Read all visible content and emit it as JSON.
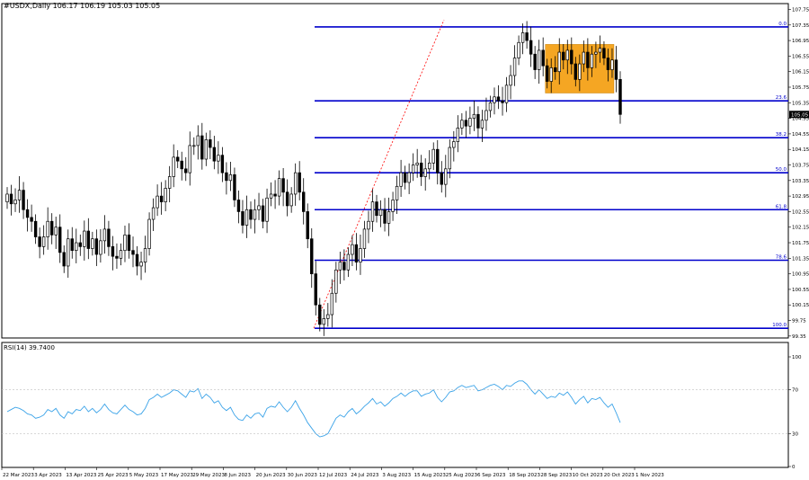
{
  "header": {
    "symbol_line": "#USDX,Daily  106.17 106.19 105.03 105.05"
  },
  "rsi_panel": {
    "label": "RSI(14) 39.7400",
    "levels": [
      30,
      70
    ],
    "scale_labels": [
      "100",
      "70",
      "30",
      "0"
    ]
  },
  "colors": {
    "bull_candle": "#ffffff",
    "bear_candle": "#000000",
    "candle_outline": "#000000",
    "fib_line": "#0000cc",
    "trend_line": "#ff0000",
    "rsi_line": "#3ba3e8",
    "box_fill": "#f5a623",
    "current_price_bg": "#000000"
  },
  "chart_data": [
    {
      "type": "candlestick",
      "title": "#USDX,Daily",
      "y_axis_ticks": [
        "107.75",
        "107.35",
        "106.95",
        "106.55",
        "106.15",
        "105.75",
        "105.35",
        "104.95",
        "104.55",
        "104.15",
        "103.75",
        "103.35",
        "102.95",
        "102.55",
        "102.15",
        "101.75",
        "101.35",
        "100.95",
        "100.55",
        "100.15",
        "99.75",
        "99.35"
      ],
      "ylim": [
        99.3,
        107.9
      ],
      "current_price_label": "105.05",
      "x_axis_labels": [
        "22 Mar 2023",
        "3 Apr 2023",
        "13 Apr 2023",
        "25 Apr 2023",
        "5 May 2023",
        "17 May 2023",
        "29 May 2023",
        "8 Jun 2023",
        "20 Jun 2023",
        "30 Jun 2023",
        "12 Jul 2023",
        "24 Jul 2023",
        "3 Aug 2023",
        "15 Aug 2023",
        "25 Aug 2023",
        "6 Sep 2023",
        "18 Sep 2023",
        "28 Sep 2023",
        "10 Oct 2023",
        "20 Oct 2023",
        "1 Nov 2023"
      ],
      "closes": [
        103.0,
        102.75,
        102.85,
        103.1,
        102.6,
        102.4,
        102.3,
        101.9,
        101.65,
        101.9,
        102.3,
        101.95,
        102.15,
        101.5,
        101.15,
        101.85,
        101.55,
        101.75,
        101.65,
        102.05,
        101.6,
        101.85,
        101.45,
        101.8,
        102.1,
        101.65,
        101.4,
        101.35,
        101.55,
        101.95,
        101.55,
        101.45,
        101.15,
        101.25,
        101.6,
        102.35,
        102.65,
        102.95,
        102.8,
        103.15,
        103.45,
        103.95,
        103.85,
        103.65,
        103.55,
        104.25,
        104.25,
        104.5,
        103.9,
        104.4,
        104.2,
        103.85,
        104.0,
        103.55,
        103.35,
        103.5,
        102.85,
        102.55,
        102.2,
        102.6,
        102.35,
        102.6,
        102.7,
        102.3,
        102.9,
        103.0,
        102.95,
        103.4,
        103.05,
        102.7,
        103.0,
        103.55,
        103.05,
        102.55,
        101.85,
        100.95,
        100.15,
        99.65,
        99.8,
        99.9,
        100.45,
        101.05,
        101.25,
        101.05,
        101.45,
        101.7,
        101.25,
        101.6,
        102.1,
        102.3,
        102.8,
        102.45,
        102.6,
        102.25,
        102.55,
        102.85,
        103.2,
        103.55,
        103.3,
        103.55,
        103.75,
        103.8,
        103.45,
        103.65,
        103.8,
        104.15,
        103.55,
        103.25,
        103.65,
        104.2,
        104.35,
        104.7,
        104.9,
        104.75,
        104.95,
        105.05,
        104.7,
        104.9,
        105.15,
        105.35,
        105.5,
        105.4,
        105.35,
        105.8,
        106.05,
        106.5,
        106.9,
        107.15,
        106.95,
        106.6,
        106.2,
        106.7,
        106.3,
        105.9,
        106.25,
        106.15,
        106.65,
        106.45,
        106.7,
        106.35,
        105.95,
        106.35,
        106.65,
        106.25,
        106.6,
        106.65,
        106.75,
        106.5,
        106.2,
        106.45,
        105.95,
        105.05
      ]
    },
    {
      "type": "horizontal-levels",
      "fib_levels": [
        {
          "label": "0.0",
          "price": 107.3
        },
        {
          "label": "23.6",
          "price": 105.4
        },
        {
          "label": "38.2",
          "price": 104.45
        },
        {
          "label": "50.0",
          "price": 103.55
        },
        {
          "label": "61.8",
          "price": 102.6
        },
        {
          "label": "78.6",
          "price": 101.3
        },
        {
          "label": "100.0",
          "price": 99.55
        }
      ]
    },
    {
      "type": "line",
      "series": [
        {
          "values": [
            50,
            52,
            54,
            53,
            51,
            48,
            47,
            44,
            45,
            47,
            52,
            50,
            53,
            47,
            44,
            50,
            48,
            52,
            51,
            55,
            50,
            53,
            49,
            52,
            57,
            52,
            49,
            48,
            52,
            56,
            52,
            50,
            47,
            48,
            53,
            61,
            63,
            66,
            63,
            65,
            67,
            70,
            69,
            66,
            63,
            69,
            68,
            71,
            62,
            66,
            63,
            58,
            60,
            54,
            51,
            54,
            47,
            43,
            42,
            47,
            44,
            48,
            49,
            45,
            53,
            55,
            54,
            59,
            54,
            50,
            54,
            60,
            53,
            47,
            40,
            35,
            30,
            27,
            28,
            30,
            37,
            44,
            47,
            45,
            50,
            53,
            48,
            51,
            55,
            58,
            62,
            57,
            59,
            55,
            58,
            62,
            64,
            67,
            64,
            67,
            69,
            69,
            64,
            66,
            67,
            70,
            63,
            59,
            63,
            68,
            69,
            72,
            74,
            72,
            73,
            74,
            69,
            70,
            72,
            74,
            75,
            73,
            70,
            74,
            73,
            76,
            78,
            78,
            75,
            70,
            66,
            70,
            66,
            62,
            64,
            63,
            67,
            65,
            68,
            63,
            57,
            61,
            64,
            58,
            62,
            61,
            63,
            58,
            54,
            57,
            49,
            40
          ]
        }
      ],
      "ylim": [
        0,
        100
      ]
    }
  ]
}
